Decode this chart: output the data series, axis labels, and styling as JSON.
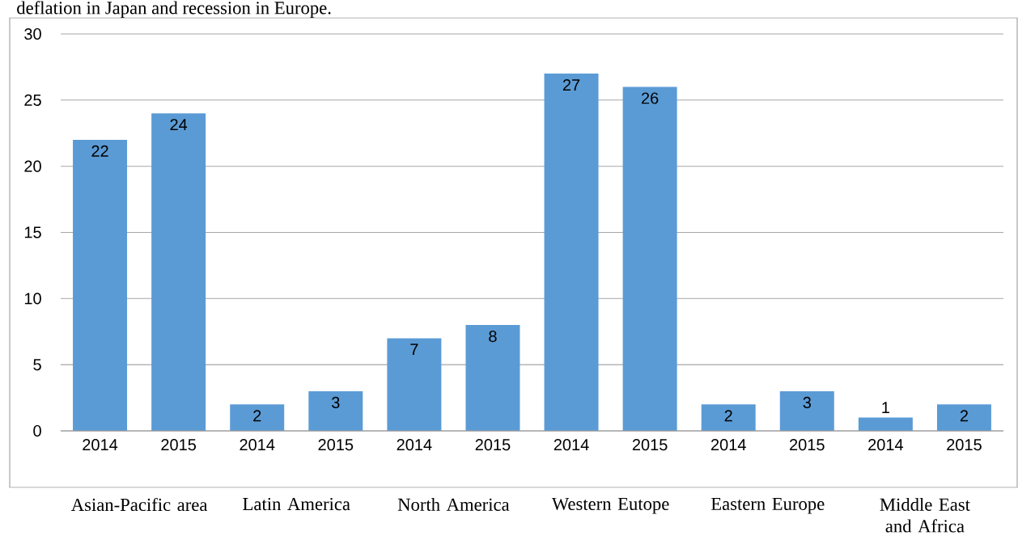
{
  "chart_data": {
    "type": "bar",
    "categories": [
      "2014",
      "2015",
      "2014",
      "2015",
      "2014",
      "2015",
      "2014",
      "2015",
      "2014",
      "2015",
      "2014",
      "2015"
    ],
    "values": [
      22,
      24,
      2,
      3,
      7,
      8,
      27,
      26,
      2,
      3,
      1,
      2
    ],
    "color": "#5b9bd5",
    "ylim": [
      0,
      30
    ],
    "yticks": [
      0,
      5,
      10,
      15,
      20,
      25,
      30
    ],
    "grid": "y",
    "data_labels": true,
    "annotations": [
      "deflation in Japan and recession in Europe.",
      "Asian-Pacific area",
      "Latin America",
      "North America",
      "Western Eutope",
      "Eastern Europe",
      "Middle East and Africa"
    ]
  }
}
